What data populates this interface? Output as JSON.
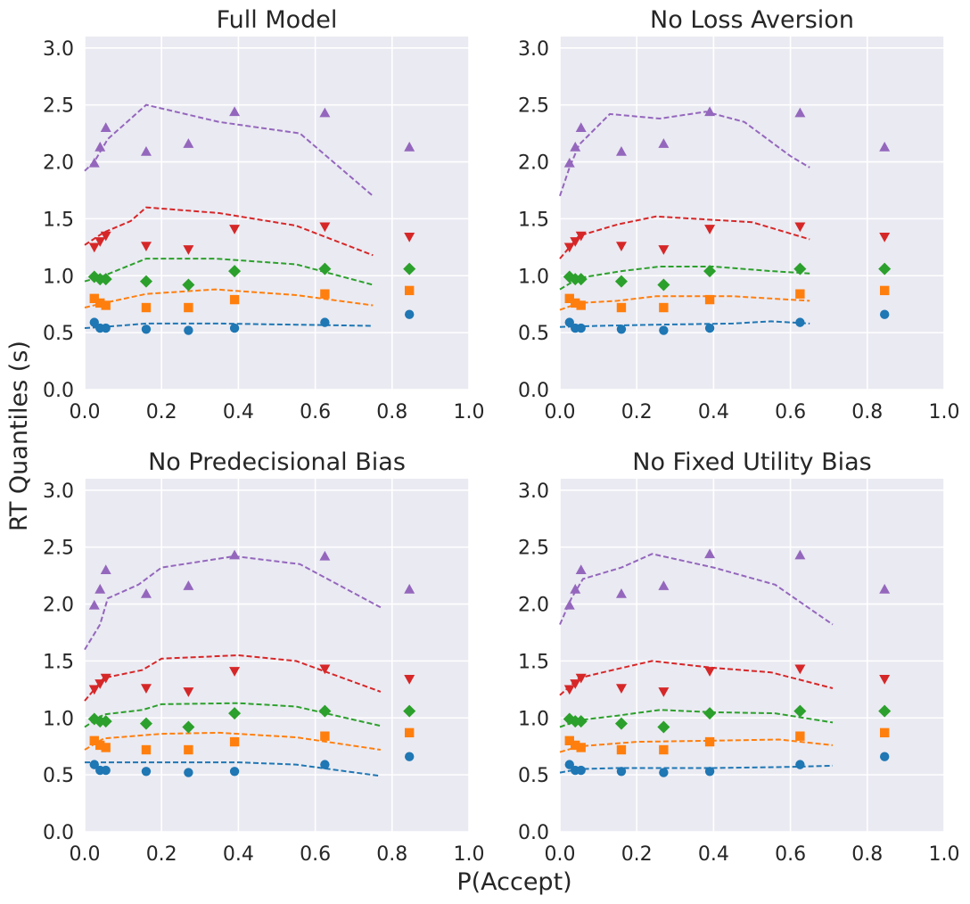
{
  "figure": {
    "shared_ylabel": "RT Quantiles (s)",
    "shared_xlabel": "P(Accept)",
    "colors": {
      "q1": "#1f77b4",
      "q2": "#ff7f0e",
      "q3": "#2ca02c",
      "q4": "#d62728",
      "q5": "#9467bd",
      "panel_bg": "#eaeaf2",
      "grid": "#ffffff"
    }
  },
  "chart_data": [
    {
      "type": "scatter",
      "title": "Full Model",
      "xlim": [
        0.0,
        1.0
      ],
      "ylim": [
        0.0,
        3.1
      ],
      "xticks": [
        "0.0",
        "0.2",
        "0.4",
        "0.6",
        "0.8",
        "1.0"
      ],
      "yticks": [
        "0.0",
        "0.5",
        "1.0",
        "1.5",
        "2.0",
        "2.5",
        "3.0"
      ],
      "grid": true,
      "observed_x": [
        0.025,
        0.04,
        0.055,
        0.16,
        0.27,
        0.39,
        0.625,
        0.845
      ],
      "series": [
        {
          "key": "q1",
          "marker": "circle",
          "color": "#1f77b4",
          "observed": [
            0.59,
            0.54,
            0.54,
            0.53,
            0.52,
            0.54,
            0.59,
            0.66
          ],
          "model_x": [
            0.0,
            0.05,
            0.16,
            0.35,
            0.55,
            0.75
          ],
          "model_y": [
            0.54,
            0.55,
            0.58,
            0.58,
            0.57,
            0.56
          ]
        },
        {
          "key": "q2",
          "marker": "square",
          "color": "#ff7f0e",
          "observed": [
            0.8,
            0.76,
            0.74,
            0.72,
            0.72,
            0.79,
            0.84,
            0.87
          ],
          "model_x": [
            0.0,
            0.05,
            0.16,
            0.34,
            0.55,
            0.75
          ],
          "model_y": [
            0.72,
            0.76,
            0.84,
            0.88,
            0.83,
            0.74
          ]
        },
        {
          "key": "q3",
          "marker": "diamond",
          "color": "#2ca02c",
          "observed": [
            0.99,
            0.97,
            0.97,
            0.95,
            0.92,
            1.04,
            1.06,
            1.06
          ],
          "model_x": [
            0.0,
            0.05,
            0.16,
            0.34,
            0.55,
            0.75
          ],
          "model_y": [
            0.95,
            1.0,
            1.15,
            1.15,
            1.1,
            0.92
          ]
        },
        {
          "key": "q4",
          "marker": "triangle-down",
          "color": "#d62728",
          "observed": [
            1.25,
            1.3,
            1.35,
            1.26,
            1.23,
            1.41,
            1.43,
            1.34
          ],
          "model_x": [
            0.0,
            0.05,
            0.12,
            0.16,
            0.35,
            0.55,
            0.75
          ],
          "model_y": [
            1.27,
            1.38,
            1.48,
            1.6,
            1.55,
            1.44,
            1.18
          ]
        },
        {
          "key": "q5",
          "marker": "triangle-up",
          "color": "#9467bd",
          "observed": [
            1.99,
            2.13,
            2.3,
            2.09,
            2.16,
            2.44,
            2.43,
            2.13
          ],
          "model_x": [
            0.0,
            0.025,
            0.06,
            0.16,
            0.35,
            0.56,
            0.75
          ],
          "model_y": [
            1.92,
            2.0,
            2.2,
            2.5,
            2.35,
            2.25,
            1.7
          ]
        }
      ]
    },
    {
      "type": "scatter",
      "title": "No Loss Aversion",
      "xlim": [
        0.0,
        1.0
      ],
      "ylim": [
        0.0,
        3.1
      ],
      "xticks": [
        "0.0",
        "0.2",
        "0.4",
        "0.6",
        "0.8",
        "1.0"
      ],
      "yticks": [
        "0.0",
        "0.5",
        "1.0",
        "1.5",
        "2.0",
        "2.5",
        "3.0"
      ],
      "grid": true,
      "observed_x": [
        0.025,
        0.04,
        0.055,
        0.16,
        0.27,
        0.39,
        0.625,
        0.845
      ],
      "series": [
        {
          "key": "q1",
          "marker": "circle",
          "color": "#1f77b4",
          "observed": [
            0.59,
            0.54,
            0.54,
            0.53,
            0.52,
            0.54,
            0.59,
            0.66
          ],
          "model_x": [
            0.0,
            0.1,
            0.25,
            0.45,
            0.55,
            0.65
          ],
          "model_y": [
            0.55,
            0.56,
            0.57,
            0.58,
            0.6,
            0.58
          ]
        },
        {
          "key": "q2",
          "marker": "square",
          "color": "#ff7f0e",
          "observed": [
            0.8,
            0.76,
            0.74,
            0.72,
            0.72,
            0.79,
            0.84,
            0.87
          ],
          "model_x": [
            0.0,
            0.05,
            0.15,
            0.25,
            0.45,
            0.65
          ],
          "model_y": [
            0.7,
            0.76,
            0.78,
            0.82,
            0.82,
            0.78
          ]
        },
        {
          "key": "q3",
          "marker": "diamond",
          "color": "#2ca02c",
          "observed": [
            0.99,
            0.97,
            0.97,
            0.95,
            0.92,
            1.04,
            1.06,
            1.06
          ],
          "model_x": [
            0.0,
            0.05,
            0.16,
            0.26,
            0.4,
            0.55,
            0.65
          ],
          "model_y": [
            0.88,
            0.98,
            1.04,
            1.08,
            1.08,
            1.04,
            1.02
          ]
        },
        {
          "key": "q4",
          "marker": "triangle-down",
          "color": "#d62728",
          "observed": [
            1.25,
            1.3,
            1.35,
            1.26,
            1.23,
            1.41,
            1.43,
            1.34
          ],
          "model_x": [
            0.0,
            0.05,
            0.15,
            0.25,
            0.5,
            0.65
          ],
          "model_y": [
            1.15,
            1.35,
            1.45,
            1.52,
            1.47,
            1.32
          ]
        },
        {
          "key": "q5",
          "marker": "triangle-up",
          "color": "#9467bd",
          "observed": [
            1.99,
            2.13,
            2.3,
            2.09,
            2.16,
            2.44,
            2.43,
            2.13
          ],
          "model_x": [
            0.0,
            0.025,
            0.05,
            0.13,
            0.26,
            0.38,
            0.48,
            0.6,
            0.65
          ],
          "model_y": [
            1.7,
            1.95,
            2.15,
            2.42,
            2.38,
            2.44,
            2.35,
            2.05,
            1.95
          ]
        }
      ]
    },
    {
      "type": "scatter",
      "title": "No Predecisional Bias",
      "xlim": [
        0.0,
        1.0
      ],
      "ylim": [
        0.0,
        3.1
      ],
      "xticks": [
        "0.0",
        "0.2",
        "0.4",
        "0.6",
        "0.8",
        "1.0"
      ],
      "yticks": [
        "0.0",
        "0.5",
        "1.0",
        "1.5",
        "2.0",
        "2.5",
        "3.0"
      ],
      "grid": true,
      "observed_x": [
        0.025,
        0.04,
        0.055,
        0.16,
        0.27,
        0.39,
        0.625,
        0.845
      ],
      "series": [
        {
          "key": "q1",
          "marker": "circle",
          "color": "#1f77b4",
          "observed": [
            0.59,
            0.54,
            0.54,
            0.53,
            0.52,
            0.53,
            0.59,
            0.66
          ],
          "model_x": [
            0.0,
            0.05,
            0.2,
            0.4,
            0.55,
            0.77
          ],
          "model_y": [
            0.61,
            0.61,
            0.61,
            0.61,
            0.59,
            0.49
          ]
        },
        {
          "key": "q2",
          "marker": "square",
          "color": "#ff7f0e",
          "observed": [
            0.8,
            0.76,
            0.74,
            0.72,
            0.72,
            0.79,
            0.84,
            0.87
          ],
          "model_x": [
            0.0,
            0.05,
            0.2,
            0.35,
            0.55,
            0.77
          ],
          "model_y": [
            0.72,
            0.82,
            0.86,
            0.87,
            0.83,
            0.72
          ]
        },
        {
          "key": "q3",
          "marker": "diamond",
          "color": "#2ca02c",
          "observed": [
            0.99,
            0.97,
            0.97,
            0.95,
            0.92,
            1.04,
            1.06,
            1.06
          ],
          "model_x": [
            0.0,
            0.05,
            0.15,
            0.2,
            0.4,
            0.55,
            0.77
          ],
          "model_y": [
            0.92,
            1.03,
            1.07,
            1.12,
            1.13,
            1.1,
            0.93
          ]
        },
        {
          "key": "q4",
          "marker": "triangle-down",
          "color": "#d62728",
          "observed": [
            1.25,
            1.3,
            1.35,
            1.26,
            1.23,
            1.41,
            1.43,
            1.34
          ],
          "model_x": [
            0.0,
            0.05,
            0.15,
            0.2,
            0.4,
            0.55,
            0.77
          ],
          "model_y": [
            1.15,
            1.35,
            1.42,
            1.52,
            1.55,
            1.5,
            1.23
          ]
        },
        {
          "key": "q5",
          "marker": "triangle-up",
          "color": "#9467bd",
          "observed": [
            1.99,
            2.13,
            2.3,
            2.09,
            2.16,
            2.43,
            2.42,
            2.13
          ],
          "model_x": [
            0.0,
            0.04,
            0.06,
            0.14,
            0.2,
            0.39,
            0.56,
            0.77
          ],
          "model_y": [
            1.6,
            1.82,
            2.05,
            2.17,
            2.32,
            2.42,
            2.35,
            1.97
          ]
        }
      ]
    },
    {
      "type": "scatter",
      "title": "No Fixed Utility Bias",
      "xlim": [
        0.0,
        1.0
      ],
      "ylim": [
        0.0,
        3.1
      ],
      "xticks": [
        "0.0",
        "0.2",
        "0.4",
        "0.6",
        "0.8",
        "1.0"
      ],
      "yticks": [
        "0.0",
        "0.5",
        "1.0",
        "1.5",
        "2.0",
        "2.5",
        "3.0"
      ],
      "grid": true,
      "observed_x": [
        0.025,
        0.04,
        0.055,
        0.16,
        0.27,
        0.39,
        0.625,
        0.845
      ],
      "series": [
        {
          "key": "q1",
          "marker": "circle",
          "color": "#1f77b4",
          "observed": [
            0.59,
            0.54,
            0.54,
            0.53,
            0.52,
            0.53,
            0.59,
            0.66
          ],
          "model_x": [
            0.0,
            0.05,
            0.15,
            0.4,
            0.6,
            0.71
          ],
          "model_y": [
            0.52,
            0.55,
            0.56,
            0.56,
            0.57,
            0.58
          ]
        },
        {
          "key": "q2",
          "marker": "square",
          "color": "#ff7f0e",
          "observed": [
            0.8,
            0.76,
            0.74,
            0.72,
            0.72,
            0.79,
            0.84,
            0.87
          ],
          "model_x": [
            0.0,
            0.05,
            0.2,
            0.4,
            0.57,
            0.71
          ],
          "model_y": [
            0.7,
            0.75,
            0.79,
            0.8,
            0.81,
            0.76
          ]
        },
        {
          "key": "q3",
          "marker": "diamond",
          "color": "#2ca02c",
          "observed": [
            0.99,
            0.97,
            0.97,
            0.95,
            0.92,
            1.04,
            1.06,
            1.06
          ],
          "model_x": [
            0.0,
            0.05,
            0.15,
            0.26,
            0.4,
            0.56,
            0.71
          ],
          "model_y": [
            0.92,
            0.98,
            1.02,
            1.07,
            1.05,
            1.04,
            0.96
          ]
        },
        {
          "key": "q4",
          "marker": "triangle-down",
          "color": "#d62728",
          "observed": [
            1.25,
            1.3,
            1.35,
            1.26,
            1.23,
            1.41,
            1.43,
            1.34
          ],
          "model_x": [
            0.0,
            0.05,
            0.15,
            0.24,
            0.4,
            0.55,
            0.71
          ],
          "model_y": [
            1.2,
            1.35,
            1.43,
            1.5,
            1.44,
            1.4,
            1.26
          ]
        },
        {
          "key": "q5",
          "marker": "triangle-up",
          "color": "#9467bd",
          "observed": [
            1.99,
            2.13,
            2.3,
            2.09,
            2.16,
            2.44,
            2.43,
            2.13
          ],
          "model_x": [
            0.0,
            0.03,
            0.06,
            0.16,
            0.24,
            0.4,
            0.56,
            0.71
          ],
          "model_y": [
            1.82,
            2.05,
            2.22,
            2.32,
            2.44,
            2.32,
            2.17,
            1.82
          ]
        }
      ]
    }
  ]
}
